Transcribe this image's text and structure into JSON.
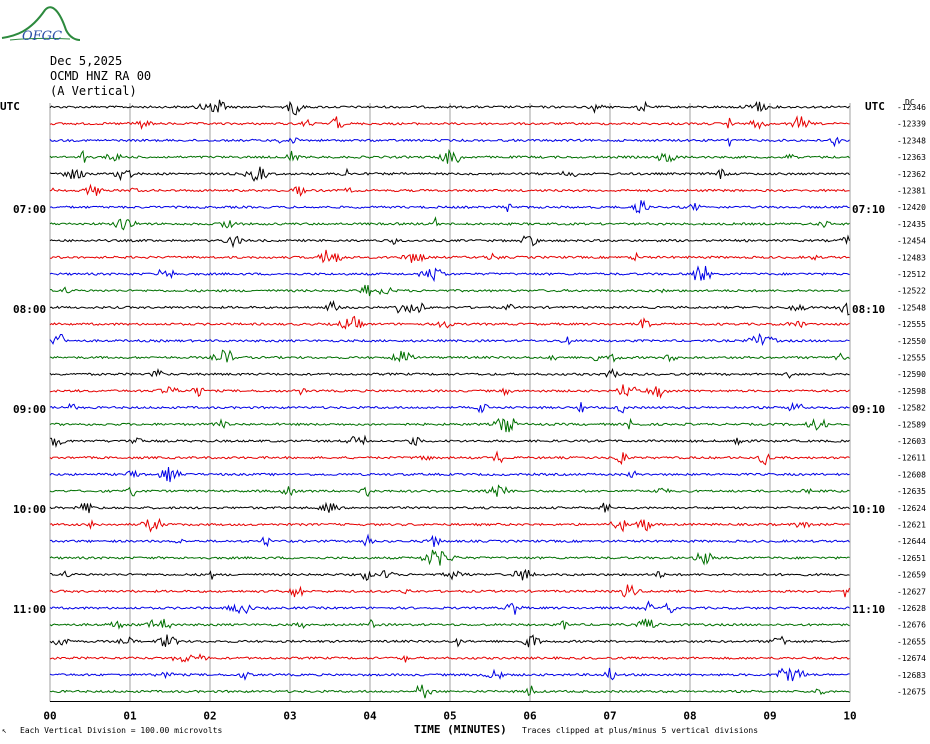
{
  "logo": {
    "text": "OFGC"
  },
  "header": {
    "date": "Dec 5,2025",
    "station": "OCMD HNZ RA 00",
    "component": "(A Vertical)"
  },
  "left_axis_label": "UTC",
  "right_axis_label": "UTC",
  "dc_label": "DC",
  "left_times": [
    "07:00",
    "08:00",
    "09:00",
    "10:00",
    "11:00"
  ],
  "right_times": [
    "07:10",
    "08:10",
    "09:10",
    "10:10",
    "11:10"
  ],
  "xlabel": "TIME (MINUTES)",
  "footer": {
    "scale_note": "Each Vertical Division =  100.00 microvolts",
    "clip_note": "Traces clipped at plus/minus 5 vertical divisions"
  },
  "trace_colors": [
    "#000000",
    "#e60000",
    "#0000e6",
    "#007000"
  ],
  "chart_data": {
    "type": "line",
    "title": "",
    "xlabel": "TIME (MINUTES)",
    "ylabel": "",
    "xlim": [
      0,
      10
    ],
    "x_ticks": [
      "00",
      "01",
      "02",
      "03",
      "04",
      "05",
      "06",
      "07",
      "08",
      "09",
      "10"
    ],
    "trace_count": 36,
    "dc_offsets": [
      -12346,
      -12339,
      -12348,
      -12363,
      -12362,
      -12381,
      -12420,
      -12435,
      -12454,
      -12483,
      -12512,
      -12522,
      -12548,
      -12555,
      -12550,
      -12555,
      -12590,
      -12598,
      -12582,
      -12589,
      -12603,
      -12611,
      -12608,
      -12635,
      -12624,
      -12621,
      -12644,
      -12651,
      -12659,
      -12627,
      -12628,
      -12676,
      -12655,
      -12674,
      -12683,
      -12675
    ]
  }
}
